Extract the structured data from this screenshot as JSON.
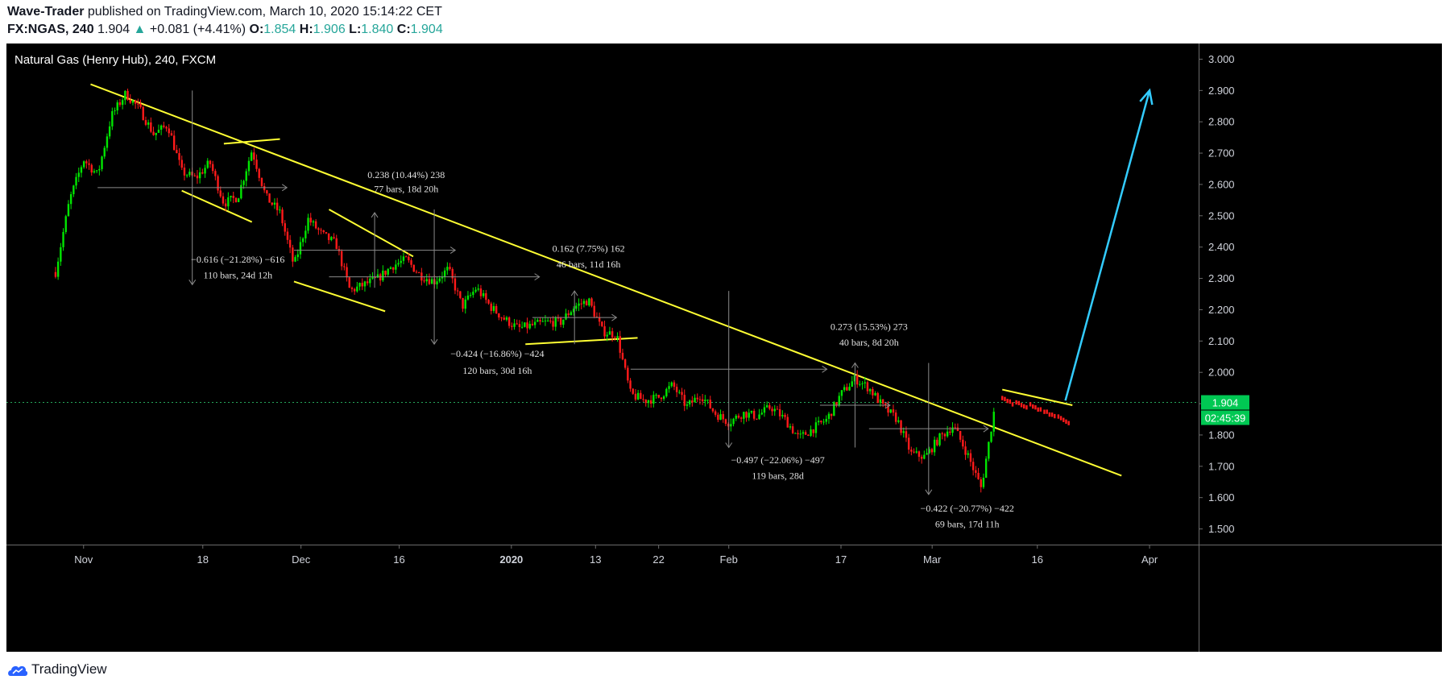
{
  "header": {
    "author": "Wave-Trader",
    "published": " published on TradingView.com, March 10, 2020 15:14:22 CET",
    "symbol": "FX:NGAS, 240",
    "last": "1.904",
    "change": "+0.081 (+4.41%)",
    "o_label": "O:",
    "o_value": "1.854",
    "h_label": "H:",
    "h_value": "1.906",
    "l_label": "L:",
    "l_value": "1.840",
    "c_label": "C:",
    "c_value": "1.904"
  },
  "footer": {
    "brand": "TradingView"
  },
  "colors": {
    "up": "#00e600",
    "down": "#ff1a1a",
    "trendline": "#ffff33",
    "projection": "#33ccff",
    "price_line": "#26a65a"
  },
  "chart_data": {
    "type": "line",
    "title": "Natural Gas (Henry Hub), 240, FXCM",
    "xlabel": "",
    "ylabel": "",
    "ylim": [
      1.45,
      3.05
    ],
    "x_ticks": [
      "Nov",
      "18",
      "Dec",
      "16",
      "2020",
      "13",
      "22",
      "Feb",
      "17",
      "Mar",
      "16",
      "Apr"
    ],
    "y_ticks": [
      "3.000",
      "2.900",
      "2.800",
      "2.700",
      "2.600",
      "2.500",
      "2.400",
      "2.300",
      "2.200",
      "2.100",
      "2.000",
      "1.900",
      "1.800",
      "1.700",
      "1.600",
      "1.500"
    ],
    "last_price_label": "1.904",
    "countdown_label": "02:45:39",
    "series": [
      {
        "values": [
          [
            "2019-10-28",
            2.32
          ],
          [
            "2019-10-30",
            2.55
          ],
          [
            "2019-11-01",
            2.68
          ],
          [
            "2019-11-03",
            2.63
          ],
          [
            "2019-11-05",
            2.82
          ],
          [
            "2019-11-07",
            2.89
          ],
          [
            "2019-11-09",
            2.84
          ],
          [
            "2019-11-11",
            2.76
          ],
          [
            "2019-11-13",
            2.79
          ],
          [
            "2019-11-15",
            2.64
          ],
          [
            "2019-11-17",
            2.62
          ],
          [
            "2019-11-19",
            2.67
          ],
          [
            "2019-11-21",
            2.54
          ],
          [
            "2019-11-23",
            2.56
          ],
          [
            "2019-11-25",
            2.71
          ],
          [
            "2019-11-27",
            2.56
          ],
          [
            "2019-11-29",
            2.51
          ],
          [
            "2019-12-01",
            2.34
          ],
          [
            "2019-12-03",
            2.49
          ],
          [
            "2019-12-05",
            2.44
          ],
          [
            "2019-12-07",
            2.41
          ],
          [
            "2019-12-09",
            2.26
          ],
          [
            "2019-12-11",
            2.28
          ],
          [
            "2019-12-13",
            2.3
          ],
          [
            "2019-12-15",
            2.34
          ],
          [
            "2019-12-17",
            2.36
          ],
          [
            "2019-12-19",
            2.31
          ],
          [
            "2019-12-21",
            2.29
          ],
          [
            "2019-12-23",
            2.33
          ],
          [
            "2019-12-25",
            2.21
          ],
          [
            "2019-12-27",
            2.27
          ],
          [
            "2019-12-29",
            2.21
          ],
          [
            "2019-12-31",
            2.17
          ],
          [
            "2020-01-02",
            2.14
          ],
          [
            "2020-01-04",
            2.15
          ],
          [
            "2020-01-06",
            2.16
          ],
          [
            "2020-01-08",
            2.16
          ],
          [
            "2020-01-10",
            2.21
          ],
          [
            "2020-01-12",
            2.23
          ],
          [
            "2020-01-14",
            2.13
          ],
          [
            "2020-01-16",
            2.12
          ],
          [
            "2020-01-18",
            1.93
          ],
          [
            "2020-01-20",
            1.91
          ],
          [
            "2020-01-22",
            1.92
          ],
          [
            "2020-01-24",
            1.96
          ],
          [
            "2020-01-26",
            1.89
          ],
          [
            "2020-01-28",
            1.93
          ],
          [
            "2020-01-30",
            1.87
          ],
          [
            "2020-02-01",
            1.84
          ],
          [
            "2020-02-03",
            1.87
          ],
          [
            "2020-02-05",
            1.86
          ],
          [
            "2020-02-07",
            1.89
          ],
          [
            "2020-02-09",
            1.85
          ],
          [
            "2020-02-11",
            1.79
          ],
          [
            "2020-02-13",
            1.82
          ],
          [
            "2020-02-15",
            1.85
          ],
          [
            "2020-02-17",
            1.93
          ],
          [
            "2020-02-19",
            1.98
          ],
          [
            "2020-02-21",
            1.95
          ],
          [
            "2020-02-23",
            1.89
          ],
          [
            "2020-02-25",
            1.85
          ],
          [
            "2020-02-27",
            1.74
          ],
          [
            "2020-02-29",
            1.73
          ],
          [
            "2020-03-02",
            1.79
          ],
          [
            "2020-03-04",
            1.83
          ],
          [
            "2020-03-06",
            1.74
          ],
          [
            "2020-03-08",
            1.63
          ],
          [
            "2020-03-10",
            1.9
          ]
        ]
      }
    ],
    "projection_values": [
      [
        "2020-03-11",
        1.92
      ],
      [
        "2020-03-13",
        1.91
      ],
      [
        "2020-03-15",
        1.9
      ],
      [
        "2020-03-17",
        1.88
      ],
      [
        "2020-03-19",
        1.86
      ]
    ],
    "price_line": 1.904,
    "trendlines": [
      {
        "from": [
          "2019-11-02",
          2.92
        ],
        "to": [
          "2020-03-28",
          1.67
        ]
      },
      {
        "from": [
          "2019-11-21",
          2.73
        ],
        "to": [
          "2019-11-29",
          2.745
        ]
      },
      {
        "from": [
          "2019-11-15",
          2.58
        ],
        "to": [
          "2019-11-25",
          2.48
        ]
      },
      {
        "from": [
          "2019-12-06",
          2.52
        ],
        "to": [
          "2019-12-18",
          2.37
        ]
      },
      {
        "from": [
          "2019-12-01",
          2.29
        ],
        "to": [
          "2019-12-14",
          2.195
        ]
      },
      {
        "from": [
          "2020-01-03",
          2.09
        ],
        "to": [
          "2020-01-19",
          2.11
        ]
      },
      {
        "from": [
          "2020-03-11",
          1.945
        ],
        "to": [
          "2020-03-21",
          1.895
        ]
      }
    ],
    "projection_arrow": {
      "from": [
        "2020-03-20",
        1.91
      ],
      "to": [
        "2020-04-01",
        2.9
      ]
    },
    "measurements": [
      {
        "x_from": "2019-11-03",
        "x_to": "2019-11-30",
        "y_from": 2.9,
        "y_to": 2.28,
        "label": "−0.616 (−21.28%) −616",
        "sub": "110 bars, 24d 12h",
        "label_at": [
          "2019-11-23",
          2.35
        ],
        "sub_at": [
          "2019-11-23",
          2.3
        ]
      },
      {
        "x_from": "2019-12-01",
        "x_to": "2019-12-24",
        "y_from": 2.27,
        "y_to": 2.51,
        "label": "0.238 (10.44%) 238",
        "sub": "77 bars, 18d 20h",
        "label_at": [
          "2019-12-17",
          2.62
        ],
        "sub_at": [
          "2019-12-17",
          2.575
        ]
      },
      {
        "x_from": "2019-12-06",
        "x_to": "2020-01-05",
        "y_from": 2.52,
        "y_to": 2.09,
        "label": "−0.424 (−16.86%) −424",
        "sub": "120 bars, 30d 16h",
        "label_at": [
          "2019-12-30",
          2.05
        ],
        "sub_at": [
          "2019-12-30",
          1.995
        ]
      },
      {
        "x_from": "2020-01-04",
        "x_to": "2020-01-16",
        "y_from": 2.09,
        "y_to": 2.26,
        "label": "0.162 (7.75%) 162",
        "sub": "46 bars, 11d 16h",
        "label_at": [
          "2020-01-12",
          2.385
        ],
        "sub_at": [
          "2020-01-12",
          2.335
        ]
      },
      {
        "x_from": "2020-01-18",
        "x_to": "2020-02-15",
        "y_from": 2.26,
        "y_to": 1.76,
        "label": "−0.497 (−22.06%) −497",
        "sub": "119 bars, 28d",
        "label_at": [
          "2020-02-08",
          1.71
        ],
        "sub_at": [
          "2020-02-08",
          1.66
        ]
      },
      {
        "x_from": "2020-02-14",
        "x_to": "2020-02-24",
        "y_from": 1.76,
        "y_to": 2.03,
        "label": "0.273 (15.53%) 273",
        "sub": "40 bars, 8d 20h",
        "label_at": [
          "2020-02-21",
          2.135
        ],
        "sub_at": [
          "2020-02-21",
          2.085
        ]
      },
      {
        "x_from": "2020-02-21",
        "x_to": "2020-03-09",
        "y_from": 2.03,
        "y_to": 1.61,
        "label": "−0.422 (−20.77%) −422",
        "sub": "69 bars, 17d 11h",
        "label_at": [
          "2020-03-06",
          1.555
        ],
        "sub_at": [
          "2020-03-06",
          1.505
        ]
      }
    ]
  }
}
